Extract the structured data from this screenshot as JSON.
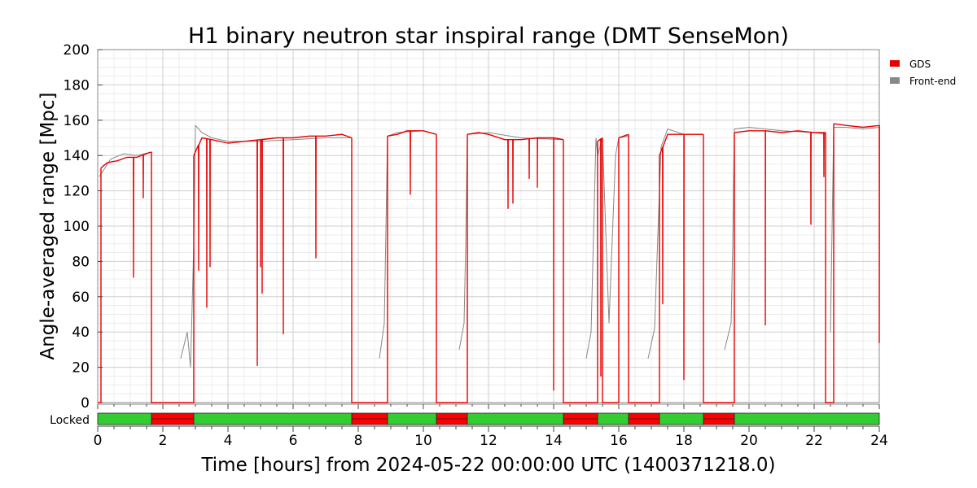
{
  "chart_data": {
    "type": "line",
    "title": "H1 binary neutron star inspiral range (DMT SenseMon)",
    "xlabel": "Time [hours] from 2024-05-22 00:00:00 UTC (1400371218.0)",
    "ylabel": "Angle-averaged range [Mpc]",
    "xlim": [
      0,
      24
    ],
    "ylim": [
      0,
      200
    ],
    "x_ticks": [
      "0",
      "2",
      "4",
      "6",
      "8",
      "10",
      "12",
      "14",
      "16",
      "18",
      "20",
      "22",
      "24"
    ],
    "y_ticks": [
      "0",
      "20",
      "40",
      "60",
      "80",
      "100",
      "120",
      "140",
      "160",
      "180",
      "200"
    ],
    "grid": true,
    "legend_position": "right",
    "colors": {
      "gds": "#e60000",
      "front_end": "#888888",
      "locked": "#33cc33",
      "unlocked": "#ff0000"
    },
    "series": [
      {
        "name": "GDS",
        "segments": [
          {
            "x": [
              0.1,
              0.3,
              0.6,
              0.9,
              1.2,
              1.5,
              1.65
            ],
            "y": [
              133,
              136,
              137,
              139,
              139,
              141,
              142
            ],
            "dips": [
              [
                1.1,
                71
              ],
              [
                1.4,
                116
              ]
            ]
          },
          {
            "x": [
              2.95,
              3.2,
              3.5,
              4.0,
              4.5,
              5.0,
              5.5,
              6.0,
              6.5,
              7.0,
              7.5,
              7.8
            ],
            "y": [
              140,
              150,
              149,
              147,
              148,
              149,
              150,
              150,
              151,
              151,
              152,
              150
            ],
            "dips": [
              [
                3.1,
                75
              ],
              [
                3.35,
                54
              ],
              [
                3.45,
                77
              ],
              [
                4.9,
                21
              ],
              [
                5.0,
                77
              ],
              [
                5.05,
                62
              ],
              [
                5.7,
                39
              ],
              [
                6.7,
                82
              ]
            ]
          },
          {
            "x": [
              8.9,
              9.2,
              9.5,
              10.0,
              10.4
            ],
            "y": [
              151,
              152,
              154,
              154,
              152
            ],
            "dips": [
              [
                9.6,
                118
              ]
            ]
          },
          {
            "x": [
              11.35,
              11.7,
              12.0,
              12.5,
              13.0,
              13.5,
              14.0,
              14.3
            ],
            "y": [
              152,
              153,
              152,
              149,
              149,
              150,
              150,
              149
            ],
            "dips": [
              [
                12.6,
                110
              ],
              [
                12.75,
                113
              ],
              [
                13.25,
                127
              ],
              [
                13.5,
                122
              ],
              [
                14.0,
                7
              ]
            ]
          },
          {
            "x": [
              15.35,
              15.5
            ],
            "y": [
              148,
              150
            ],
            "dips": [
              [
                15.45,
                15
              ]
            ]
          },
          {
            "x": [
              16.0,
              16.3
            ],
            "y": [
              150,
              152
            ],
            "dips": []
          },
          {
            "x": [
              17.25,
              17.5,
              18.0,
              18.6
            ],
            "y": [
              140,
              152,
              152,
              152
            ],
            "dips": [
              [
                17.35,
                56
              ],
              [
                18.0,
                13
              ]
            ]
          },
          {
            "x": [
              19.55,
              20.0,
              20.5,
              21.0,
              21.5,
              22.0,
              22.35
            ],
            "y": [
              153,
              154,
              154,
              153,
              154,
              153,
              153
            ],
            "dips": [
              [
                20.5,
                44
              ],
              [
                21.9,
                101
              ],
              [
                22.3,
                128
              ]
            ]
          },
          {
            "x": [
              22.6,
              23.0,
              23.5,
              24.0
            ],
            "y": [
              158,
              157,
              156,
              157
            ],
            "dips": [
              [
                24.0,
                34
              ]
            ]
          }
        ]
      },
      {
        "name": "Front-end",
        "segments": [
          {
            "x": [
              0.05,
              0.4,
              0.8,
              1.2,
              1.65
            ],
            "y": [
              128,
              138,
              141,
              140,
              142
            ]
          },
          {
            "x": [
              2.55,
              2.75,
              2.85,
              2.95,
              3.0,
              3.2,
              3.5,
              4.0,
              5.0,
              6.0,
              7.0,
              7.8
            ],
            "y": [
              25,
              40,
              20,
              90,
              157,
              153,
              150,
              148,
              148,
              149,
              150,
              150
            ]
          },
          {
            "x": [
              8.65,
              8.8,
              8.9,
              9.2,
              10.0,
              10.4
            ],
            "y": [
              25,
              45,
              151,
              153,
              154,
              152
            ]
          },
          {
            "x": [
              11.1,
              11.25,
              11.3,
              11.35,
              12.0,
              13.0,
              14.3
            ],
            "y": [
              30,
              45,
              90,
              152,
              153,
              150,
              149
            ]
          },
          {
            "x": [
              15.0,
              15.15,
              15.3,
              15.35,
              15.5,
              15.7,
              15.9,
              16.0,
              16.3
            ],
            "y": [
              25,
              40,
              150,
              140,
              150,
              45,
              140,
              150,
              151
            ]
          },
          {
            "x": [
              16.9,
              17.1,
              17.2,
              17.3,
              17.5,
              18.0,
              18.6
            ],
            "y": [
              25,
              42,
              95,
              145,
              155,
              152,
              152
            ]
          },
          {
            "x": [
              19.25,
              19.45,
              19.5,
              19.55,
              20.0,
              21.0,
              22.0,
              22.35
            ],
            "y": [
              30,
              45,
              90,
              155,
              156,
              154,
              153,
              152
            ]
          },
          {
            "x": [
              22.5,
              22.6,
              23.0,
              23.5,
              24.0
            ],
            "y": [
              40,
              156,
              156,
              155,
              156
            ]
          }
        ]
      }
    ],
    "drops": [
      {
        "from": 1.65,
        "to": 2.95,
        "level": 0
      },
      {
        "from": 7.8,
        "to": 8.9,
        "level": 0
      },
      {
        "from": 10.4,
        "to": 11.35,
        "level": 0
      },
      {
        "from": 14.3,
        "to": 15.35,
        "level": 0
      },
      {
        "from": 15.5,
        "to": 16.0,
        "level": 0
      },
      {
        "from": 16.3,
        "to": 17.25,
        "level": 0
      },
      {
        "from": 18.6,
        "to": 19.55,
        "level": 0
      },
      {
        "from": 22.35,
        "to": 22.6,
        "level": 0
      }
    ],
    "state_bar": {
      "label": "Locked",
      "locked_intervals": [
        [
          0,
          1.65
        ],
        [
          2.95,
          7.8
        ],
        [
          8.9,
          10.4
        ],
        [
          11.35,
          14.3
        ],
        [
          15.35,
          16.3
        ],
        [
          17.25,
          18.6
        ],
        [
          19.55,
          24
        ]
      ],
      "unlocked_intervals": [
        [
          1.65,
          2.95
        ],
        [
          7.8,
          8.9
        ],
        [
          10.4,
          11.35
        ],
        [
          14.3,
          15.35
        ],
        [
          16.3,
          17.25
        ],
        [
          18.6,
          19.55
        ]
      ]
    }
  }
}
